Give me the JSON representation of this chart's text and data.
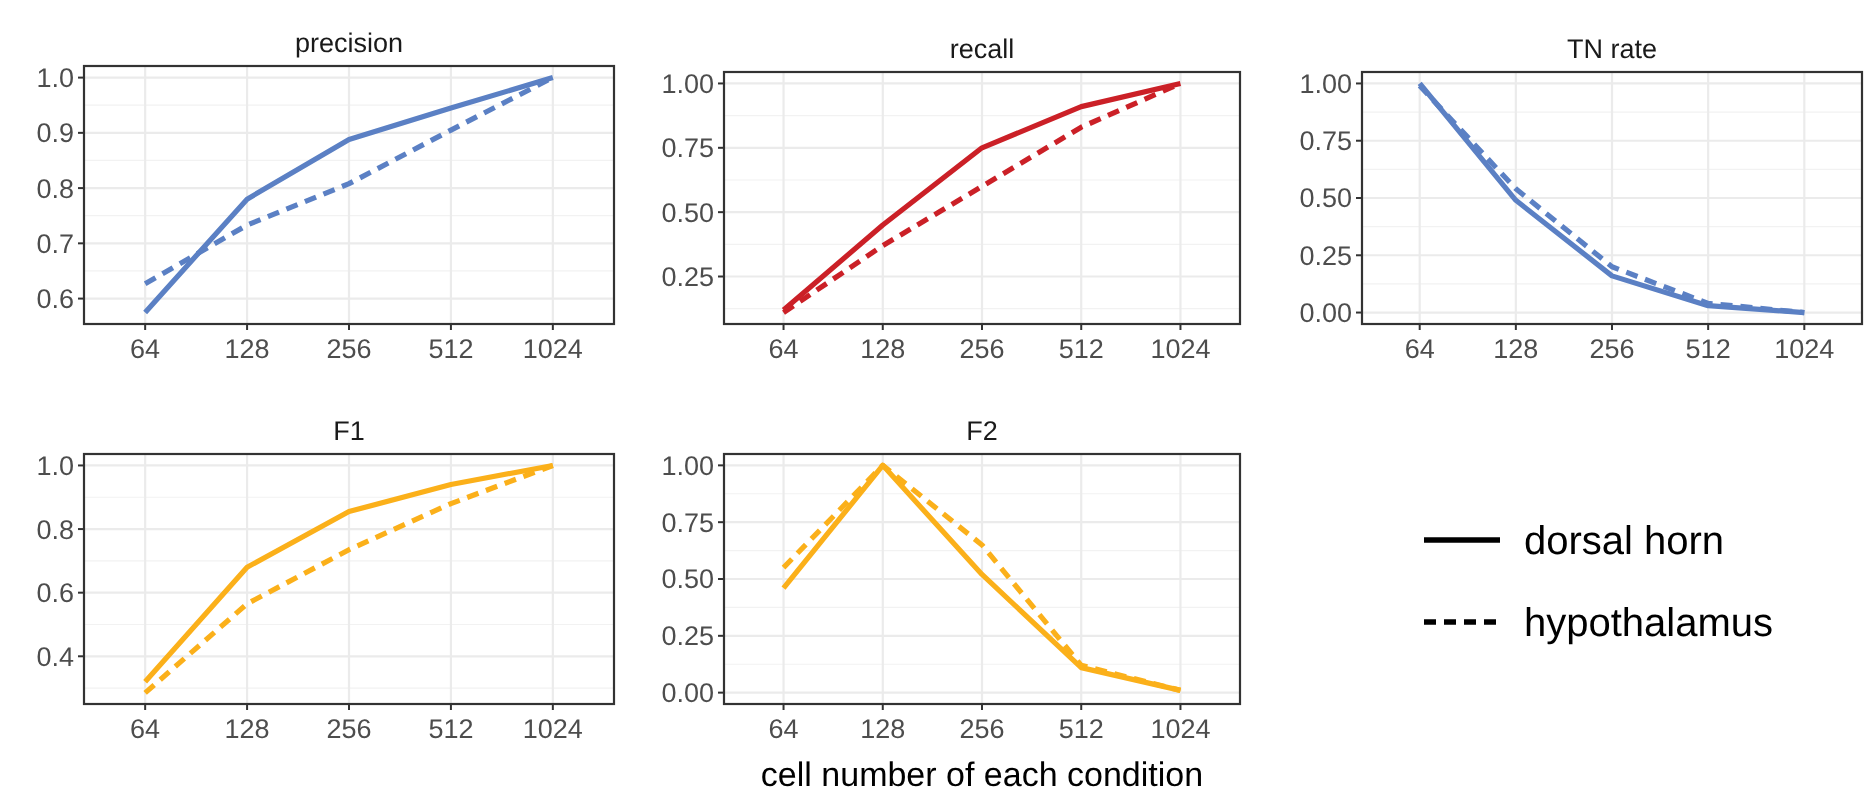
{
  "chart_data": [
    {
      "type": "line",
      "title": "precision",
      "categories": [
        "64",
        "128",
        "256",
        "512",
        "1024"
      ],
      "ylim": [
        0.554,
        1.021
      ],
      "yticks": [
        {
          "value": 0.6,
          "label": "0.6"
        },
        {
          "value": 0.7,
          "label": "0.7"
        },
        {
          "value": 0.8,
          "label": "0.8"
        },
        {
          "value": 0.9,
          "label": "0.9"
        },
        {
          "value": 1.0,
          "label": "1.0"
        }
      ],
      "grid": true,
      "series": [
        {
          "color": "#5b80c4",
          "line_style": "solid",
          "values": [
            0.575,
            0.78,
            0.888,
            0.945,
            1.0
          ]
        },
        {
          "color": "#5b80c4",
          "line_style": "dashed",
          "values": [
            0.627,
            0.733,
            0.808,
            0.905,
            1.0
          ]
        }
      ]
    },
    {
      "type": "line",
      "title": "recall",
      "categories": [
        "64",
        "128",
        "256",
        "512",
        "1024"
      ],
      "ylim": [
        0.0655,
        1.0445
      ],
      "yticks": [
        {
          "value": 0.25,
          "label": "0.25"
        },
        {
          "value": 0.5,
          "label": "0.50"
        },
        {
          "value": 0.75,
          "label": "0.75"
        },
        {
          "value": 1.0,
          "label": "1.00"
        }
      ],
      "grid": true,
      "series": [
        {
          "color": "#cb2027",
          "line_style": "solid",
          "values": [
            0.12,
            0.45,
            0.75,
            0.91,
            1.0
          ]
        },
        {
          "color": "#cb2027",
          "line_style": "dashed",
          "values": [
            0.11,
            0.37,
            0.6,
            0.83,
            1.0
          ]
        }
      ]
    },
    {
      "type": "line",
      "title": "TN rate",
      "categories": [
        "64",
        "128",
        "256",
        "512",
        "1024"
      ],
      "ylim": [
        -0.05,
        1.05
      ],
      "yticks": [
        {
          "value": 0,
          "label": "0.00"
        },
        {
          "value": 0.25,
          "label": "0.25"
        },
        {
          "value": 0.5,
          "label": "0.50"
        },
        {
          "value": 0.75,
          "label": "0.75"
        },
        {
          "value": 1.0,
          "label": "1.00"
        }
      ],
      "grid": true,
      "series": [
        {
          "color": "#5b80c4",
          "line_style": "solid",
          "values": [
            1.0,
            0.49,
            0.16,
            0.03,
            0.0
          ]
        },
        {
          "color": "#5b80c4",
          "line_style": "dashed",
          "values": [
            0.99,
            0.54,
            0.2,
            0.04,
            0.0
          ]
        }
      ]
    },
    {
      "type": "line",
      "title": "F1",
      "categories": [
        "64",
        "128",
        "256",
        "512",
        "1024"
      ],
      "ylim": [
        0.25,
        1.036
      ],
      "yticks": [
        {
          "value": 0.4,
          "label": "0.4"
        },
        {
          "value": 0.6,
          "label": "0.6"
        },
        {
          "value": 0.8,
          "label": "0.8"
        },
        {
          "value": 1.0,
          "label": "1.0"
        }
      ],
      "grid": true,
      "series": [
        {
          "color": "#fbb01a",
          "line_style": "solid",
          "values": [
            0.32,
            0.68,
            0.855,
            0.94,
            1.0
          ]
        },
        {
          "color": "#fbb01a",
          "line_style": "dashed",
          "values": [
            0.285,
            0.565,
            0.735,
            0.88,
            1.0
          ]
        }
      ]
    },
    {
      "type": "line",
      "title": "F2",
      "xlabel": "cell number of each condition",
      "categories": [
        "64",
        "128",
        "256",
        "512",
        "1024"
      ],
      "ylim": [
        -0.05,
        1.05
      ],
      "yticks": [
        {
          "value": 0,
          "label": "0.00"
        },
        {
          "value": 0.25,
          "label": "0.25"
        },
        {
          "value": 0.5,
          "label": "0.50"
        },
        {
          "value": 0.75,
          "label": "0.75"
        },
        {
          "value": 1.0,
          "label": "1.00"
        }
      ],
      "grid": true,
      "legend": "right",
      "series": [
        {
          "name": "dorsal horn",
          "color": "#fbb01a",
          "line_style": "solid",
          "values": [
            0.46,
            1.0,
            0.52,
            0.11,
            0.01
          ]
        },
        {
          "name": "hypothalamus",
          "color": "#fbb01a",
          "line_style": "dashed",
          "values": [
            0.55,
            1.0,
            0.65,
            0.12,
            0.01
          ]
        }
      ]
    }
  ]
}
